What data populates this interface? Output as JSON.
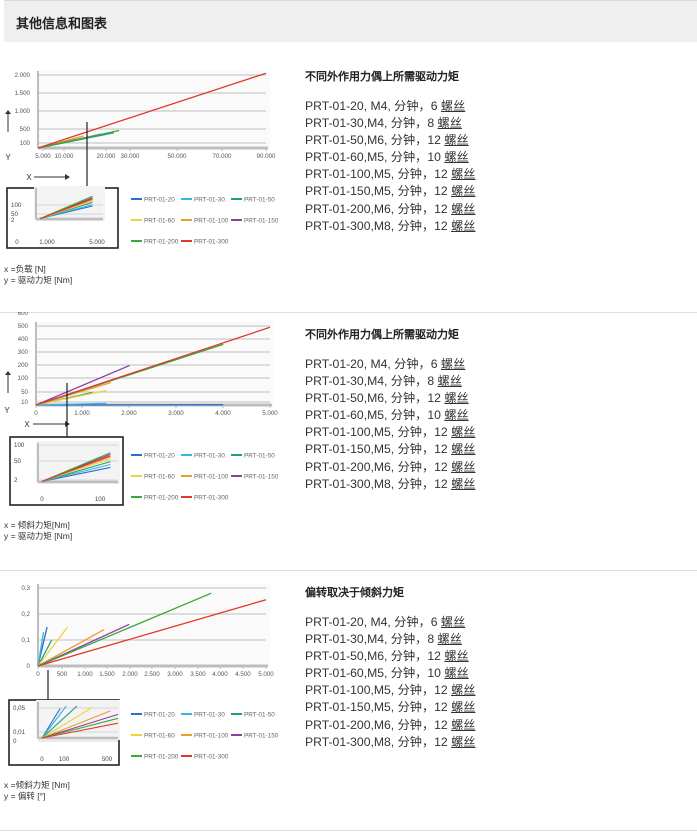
{
  "header": {
    "title": "其他信息和图表"
  },
  "sections": [
    {
      "title": "不同外作用力偶上所需驱动力矩",
      "axis_notes": [
        "x =负载 [N]",
        "y = 驱动力矩 [Nm]"
      ],
      "specs": [
        {
          "text": "PRT-01-20, M4, 分钟，6 ",
          "link": "螺丝"
        },
        {
          "text": "PRT-01-30,M4, 分钟，8 ",
          "link": "螺丝"
        },
        {
          "text": "PRT-01-50,M6, 分钟，12 ",
          "link": "螺丝"
        },
        {
          "text": "PRT-01-60,M5, 分钟，10 ",
          "link": "螺丝"
        },
        {
          "text": "PRT-01-100,M5, 分钟，12 ",
          "link": "螺丝"
        },
        {
          "text": "PRT-01-150,M5, 分钟，12 ",
          "link": "螺丝"
        },
        {
          "text": "PRT-01-200,M6, 分钟，12 ",
          "link": "螺丝"
        },
        {
          "text": "PRT-01-300,M8, 分钟，12 ",
          "link": "螺丝"
        }
      ]
    },
    {
      "title": "不同外作用力偶上所需驱动力矩",
      "axis_notes": [
        "x = 倾斜力矩[Nm]",
        "y = 驱动力矩 [Nm]"
      ],
      "specs": [
        {
          "text": "PRT-01-20, M4, 分钟，6 ",
          "link": "螺丝"
        },
        {
          "text": "PRT-01-30,M4, 分钟，8 ",
          "link": "螺丝"
        },
        {
          "text": "PRT-01-50,M6, 分钟，12 ",
          "link": "螺丝"
        },
        {
          "text": "PRT-01-60,M5, 分钟，10 ",
          "link": "螺丝"
        },
        {
          "text": "PRT-01-100,M5, 分钟，12 ",
          "link": "螺丝"
        },
        {
          "text": "PRT-01-150,M5, 分钟，12 ",
          "link": "螺丝"
        },
        {
          "text": "PRT-01-200,M6, 分钟，12 ",
          "link": "螺丝"
        },
        {
          "text": "PRT-01-300,M8, 分钟，12 ",
          "link": "螺丝"
        }
      ]
    },
    {
      "title": "偏转取决于倾斜力矩",
      "axis_notes": [
        "x =倾斜力矩 [Nm]",
        "y = 偏转 [°]"
      ],
      "specs": [
        {
          "text": "PRT-01-20, M4, 分钟，6 ",
          "link": "螺丝"
        },
        {
          "text": "PRT-01-30,M4, 分钟，8 ",
          "link": "螺丝"
        },
        {
          "text": "PRT-01-50,M6, 分钟，12 ",
          "link": "螺丝"
        },
        {
          "text": "PRT-01-60,M5, 分钟，10 ",
          "link": "螺丝"
        },
        {
          "text": "PRT-01-100,M5, 分钟，12 ",
          "link": "螺丝"
        },
        {
          "text": "PRT-01-150,M5, 分钟，12 ",
          "link": "螺丝"
        },
        {
          "text": "PRT-01-200,M6, 分钟，12 ",
          "link": "螺丝"
        },
        {
          "text": "PRT-01-300,M8, 分钟，12 ",
          "link": "螺丝"
        }
      ]
    }
  ],
  "chart_data": [
    {
      "type": "line",
      "xlabel": "X",
      "ylabel": "Y",
      "x_ticks": [
        "5.000",
        "10.000",
        "20.000",
        "30.000",
        "50.000",
        "70.000",
        "90.000"
      ],
      "y_ticks": [
        "100",
        "500",
        "1.000",
        "1.500",
        "2.000"
      ],
      "xlim": [
        0,
        90000
      ],
      "ylim": [
        0,
        2000
      ],
      "series": [
        {
          "name": "PRT-01-20",
          "color": "#2a6fc9",
          "points": [
            [
              0,
              0
            ],
            [
              10000,
              140
            ]
          ]
        },
        {
          "name": "PRT-01-30",
          "color": "#39b3e6",
          "points": [
            [
              0,
              0
            ],
            [
              12000,
              190
            ]
          ]
        },
        {
          "name": "PRT-01-50",
          "color": "#1c9e86",
          "points": [
            [
              0,
              0
            ],
            [
              30000,
              420
            ]
          ]
        },
        {
          "name": "PRT-01-60",
          "color": "#f2d23a",
          "points": [
            [
              0,
              0
            ],
            [
              15000,
              250
            ]
          ]
        },
        {
          "name": "PRT-01-100",
          "color": "#f29a2e",
          "points": [
            [
              0,
              0
            ],
            [
              18000,
              330
            ]
          ]
        },
        {
          "name": "PRT-01-150",
          "color": "#8e3fa6",
          "points": [
            [
              0,
              0
            ],
            [
              25000,
              380
            ]
          ]
        },
        {
          "name": "PRT-01-200",
          "color": "#3aa83a",
          "points": [
            [
              0,
              0
            ],
            [
              32000,
              480
            ]
          ]
        },
        {
          "name": "PRT-01-300",
          "color": "#e03a2c",
          "points": [
            [
              0,
              0
            ],
            [
              90000,
              2050
            ]
          ]
        }
      ],
      "inset": {
        "x_ticks": [
          "0",
          "1.000",
          "5.000"
        ],
        "y_ticks": [
          "100",
          "50",
          "2"
        ],
        "xlim": [
          0,
          6000
        ],
        "ylim": [
          0,
          150
        ],
        "series": [
          {
            "name": "PRT-01-20",
            "color": "#2a6fc9",
            "points": [
              [
                0,
                2
              ],
              [
                5000,
                72
              ]
            ]
          },
          {
            "name": "PRT-01-30",
            "color": "#39b3e6",
            "points": [
              [
                0,
                2
              ],
              [
                5000,
                80
              ]
            ]
          },
          {
            "name": "PRT-01-50",
            "color": "#1c9e86",
            "points": [
              [
                0,
                2
              ],
              [
                5000,
                92
              ]
            ]
          },
          {
            "name": "PRT-01-60",
            "color": "#f2d23a",
            "points": [
              [
                0,
                2
              ],
              [
                5000,
                100
              ]
            ]
          },
          {
            "name": "PRT-01-100",
            "color": "#f29a2e",
            "points": [
              [
                0,
                2
              ],
              [
                5000,
                108
              ]
            ]
          },
          {
            "name": "PRT-01-150",
            "color": "#8e3fa6",
            "points": [
              [
                0,
                2
              ],
              [
                5000,
                118
              ]
            ]
          },
          {
            "name": "PRT-01-200",
            "color": "#3aa83a",
            "points": [
              [
                0,
                2
              ],
              [
                5000,
                126
              ]
            ]
          },
          {
            "name": "PRT-01-300",
            "color": "#e03a2c",
            "points": [
              [
                0,
                2
              ],
              [
                5000,
                112
              ]
            ]
          }
        ]
      }
    },
    {
      "type": "line",
      "xlabel": "X",
      "ylabel": "Y",
      "x_ticks": [
        "0",
        "1.000",
        "2.000",
        "3.000",
        "4.000",
        "5.000"
      ],
      "y_ticks": [
        "10",
        "50",
        "100",
        "200",
        "300",
        "400",
        "500",
        "600"
      ],
      "xlim": [
        0,
        5000
      ],
      "ylim": [
        0,
        600
      ],
      "series": [
        {
          "name": "PRT-01-20",
          "color": "#2a6fc9",
          "points": [
            [
              0,
              0
            ],
            [
              4000,
              2
            ]
          ]
        },
        {
          "name": "PRT-01-30",
          "color": "#39b3e6",
          "points": [
            [
              0,
              0
            ],
            [
              1500,
              12
            ]
          ]
        },
        {
          "name": "PRT-01-50",
          "color": "#1c9e86",
          "points": [
            [
              0,
              0
            ],
            [
              1200,
              95
            ]
          ]
        },
        {
          "name": "PRT-01-60",
          "color": "#f2d23a",
          "points": [
            [
              0,
              0
            ],
            [
              1500,
              110
            ]
          ]
        },
        {
          "name": "PRT-01-100",
          "color": "#f29a2e",
          "points": [
            [
              0,
              0
            ],
            [
              1600,
              170
            ]
          ]
        },
        {
          "name": "PRT-01-150",
          "color": "#8e3fa6",
          "points": [
            [
              0,
              0
            ],
            [
              2000,
              300
            ]
          ]
        },
        {
          "name": "PRT-01-200",
          "color": "#3aa83a",
          "points": [
            [
              0,
              0
            ],
            [
              4000,
              460
            ]
          ]
        },
        {
          "name": "PRT-01-300",
          "color": "#e03a2c",
          "points": [
            [
              0,
              0
            ],
            [
              5000,
              590
            ]
          ]
        }
      ],
      "inset": {
        "x_ticks": [
          "0",
          "100"
        ],
        "y_ticks": [
          "100",
          "50",
          "2"
        ],
        "xlim": [
          0,
          200
        ],
        "ylim": [
          0,
          120
        ],
        "series": [
          {
            "name": "PRT-01-20",
            "color": "#2a6fc9",
            "points": [
              [
                0,
                2
              ],
              [
                180,
                50
              ]
            ]
          },
          {
            "name": "PRT-01-30",
            "color": "#39b3e6",
            "points": [
              [
                0,
                2
              ],
              [
                180,
                60
              ]
            ]
          },
          {
            "name": "PRT-01-50",
            "color": "#1c9e86",
            "points": [
              [
                0,
                2
              ],
              [
                180,
                70
              ]
            ]
          },
          {
            "name": "PRT-01-60",
            "color": "#f2d23a",
            "points": [
              [
                0,
                2
              ],
              [
                180,
                80
              ]
            ]
          },
          {
            "name": "PRT-01-100",
            "color": "#f29a2e",
            "points": [
              [
                0,
                2
              ],
              [
                180,
                86
              ]
            ]
          },
          {
            "name": "PRT-01-150",
            "color": "#8e3fa6",
            "points": [
              [
                0,
                2
              ],
              [
                180,
                95
              ]
            ]
          },
          {
            "name": "PRT-01-200",
            "color": "#3aa83a",
            "points": [
              [
                0,
                2
              ],
              [
                180,
                100
              ]
            ]
          },
          {
            "name": "PRT-01-300",
            "color": "#e03a2c",
            "points": [
              [
                0,
                2
              ],
              [
                180,
                90
              ]
            ]
          }
        ]
      }
    },
    {
      "type": "line",
      "x_ticks": [
        "0",
        "500",
        "1.000",
        "1.500",
        "2.000",
        "2.500",
        "3.000",
        "3.500",
        "4.000",
        "4.500",
        "5.000"
      ],
      "y_ticks": [
        "0",
        "0,1",
        "0,2",
        "0,3"
      ],
      "xlim": [
        0,
        5000
      ],
      "ylim": [
        0,
        0.3
      ],
      "series": [
        {
          "name": "PRT-01-20",
          "color": "#2a6fc9",
          "points": [
            [
              0,
              0
            ],
            [
              200,
              0.15
            ]
          ]
        },
        {
          "name": "PRT-01-30",
          "color": "#39b3e6",
          "points": [
            [
              0,
              0
            ],
            [
              120,
              0.13
            ]
          ]
        },
        {
          "name": "PRT-01-50",
          "color": "#1c9e86",
          "points": [
            [
              0,
              0
            ],
            [
              300,
              0.1
            ]
          ]
        },
        {
          "name": "PRT-01-60",
          "color": "#f2d23a",
          "points": [
            [
              0,
              0
            ],
            [
              650,
              0.15
            ]
          ]
        },
        {
          "name": "PRT-01-100",
          "color": "#f29a2e",
          "points": [
            [
              0,
              0
            ],
            [
              1450,
              0.14
            ]
          ]
        },
        {
          "name": "PRT-01-150",
          "color": "#8e3fa6",
          "points": [
            [
              0,
              0
            ],
            [
              2000,
              0.16
            ]
          ]
        },
        {
          "name": "PRT-01-200",
          "color": "#3aa83a",
          "points": [
            [
              0,
              0
            ],
            [
              3800,
              0.28
            ]
          ]
        },
        {
          "name": "PRT-01-300",
          "color": "#e03a2c",
          "points": [
            [
              0,
              0
            ],
            [
              5000,
              0.255
            ]
          ]
        }
      ],
      "inset": {
        "x_ticks": [
          "0",
          "100",
          "500"
        ],
        "y_ticks": [
          "0,05",
          "0,01",
          "0"
        ],
        "xlim": [
          0,
          500
        ],
        "ylim": [
          0,
          0.065
        ],
        "series": [
          {
            "name": "PRT-01-20",
            "color": "#2a6fc9",
            "points": [
              [
                0,
                0
              ],
              [
                120,
                0.06
              ]
            ]
          },
          {
            "name": "PRT-01-30",
            "color": "#39b3e6",
            "points": [
              [
                0,
                0
              ],
              [
                160,
                0.065
              ]
            ]
          },
          {
            "name": "PRT-01-50",
            "color": "#1c9e86",
            "points": [
              [
                0,
                0
              ],
              [
                230,
                0.065
              ]
            ]
          },
          {
            "name": "PRT-01-60",
            "color": "#f2d23a",
            "points": [
              [
                0,
                0
              ],
              [
                330,
                0.062
              ]
            ]
          },
          {
            "name": "PRT-01-100",
            "color": "#f29a2e",
            "points": [
              [
                0,
                0
              ],
              [
                450,
                0.055
              ]
            ]
          },
          {
            "name": "PRT-01-150",
            "color": "#8e3fa6",
            "points": [
              [
                0,
                0
              ],
              [
                500,
                0.048
              ]
            ]
          },
          {
            "name": "PRT-01-200",
            "color": "#3aa83a",
            "points": [
              [
                0,
                0
              ],
              [
                500,
                0.04
              ]
            ]
          },
          {
            "name": "PRT-01-300",
            "color": "#e03a2c",
            "points": [
              [
                0,
                0
              ],
              [
                500,
                0.03
              ]
            ]
          }
        ]
      }
    }
  ]
}
